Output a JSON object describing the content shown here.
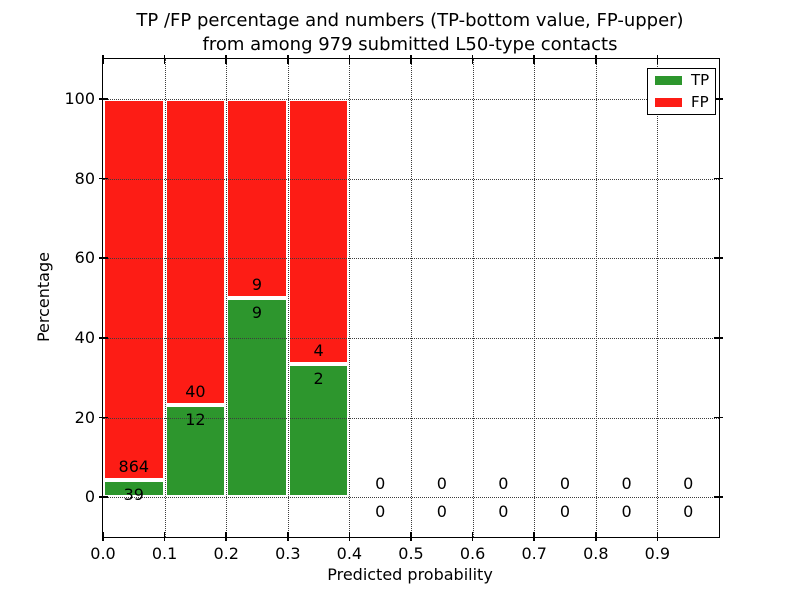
{
  "chart_data": {
    "type": "bar",
    "stacked": true,
    "title_lines": [
      "TP /FP percentage and numbers (TP-bottom value, FP-upper)",
      "from among 979 submitted L50-type contacts"
    ],
    "xlabel": "Predicted probability",
    "ylabel": "Percentage",
    "xlim": [
      0.0,
      1.0
    ],
    "ylim": [
      -10,
      110
    ],
    "x_tick_values": [
      0.0,
      0.1,
      0.2,
      0.3,
      0.4,
      0.5,
      0.6,
      0.7,
      0.8,
      0.9
    ],
    "x_tick_labels": [
      "0.0",
      "0.1",
      "0.2",
      "0.3",
      "0.4",
      "0.5",
      "0.6",
      "0.7",
      "0.8",
      "0.9"
    ],
    "y_tick_values": [
      0,
      20,
      40,
      60,
      80,
      100
    ],
    "y_tick_labels": [
      "0",
      "20",
      "40",
      "60",
      "80",
      "100"
    ],
    "grid": {
      "on": true,
      "style": "dotted",
      "above_bars": true
    },
    "colors": {
      "tp": "#2d962d",
      "fp": "#fd1c15",
      "bar_edge": "#ffffff",
      "axis": "#000000",
      "background": "#ffffff"
    },
    "legend": {
      "position": "upper right",
      "entries": [
        {
          "label": "TP",
          "color_key": "tp"
        },
        {
          "label": "FP",
          "color_key": "fp"
        }
      ]
    },
    "bins": [
      {
        "x_start": 0.0,
        "x_end": 0.1,
        "tp_count": 39,
        "fp_count": 864,
        "tp_pct": 4.32,
        "total_pct": 100
      },
      {
        "x_start": 0.1,
        "x_end": 0.2,
        "tp_count": 12,
        "fp_count": 40,
        "tp_pct": 23.08,
        "total_pct": 100
      },
      {
        "x_start": 0.2,
        "x_end": 0.3,
        "tp_count": 9,
        "fp_count": 9,
        "tp_pct": 50.0,
        "total_pct": 100
      },
      {
        "x_start": 0.3,
        "x_end": 0.4,
        "tp_count": 2,
        "fp_count": 4,
        "tp_pct": 33.33,
        "total_pct": 100
      },
      {
        "x_start": 0.4,
        "x_end": 0.5,
        "tp_count": 0,
        "fp_count": 0,
        "tp_pct": 0,
        "total_pct": 0
      },
      {
        "x_start": 0.5,
        "x_end": 0.6,
        "tp_count": 0,
        "fp_count": 0,
        "tp_pct": 0,
        "total_pct": 0
      },
      {
        "x_start": 0.6,
        "x_end": 0.7,
        "tp_count": 0,
        "fp_count": 0,
        "tp_pct": 0,
        "total_pct": 0
      },
      {
        "x_start": 0.7,
        "x_end": 0.8,
        "tp_count": 0,
        "fp_count": 0,
        "tp_pct": 0,
        "total_pct": 0
      },
      {
        "x_start": 0.8,
        "x_end": 0.9,
        "tp_count": 0,
        "fp_count": 0,
        "tp_pct": 0,
        "total_pct": 0
      },
      {
        "x_start": 0.9,
        "x_end": 1.0,
        "tp_count": 0,
        "fp_count": 0,
        "tp_pct": 0,
        "total_pct": 0
      }
    ]
  }
}
